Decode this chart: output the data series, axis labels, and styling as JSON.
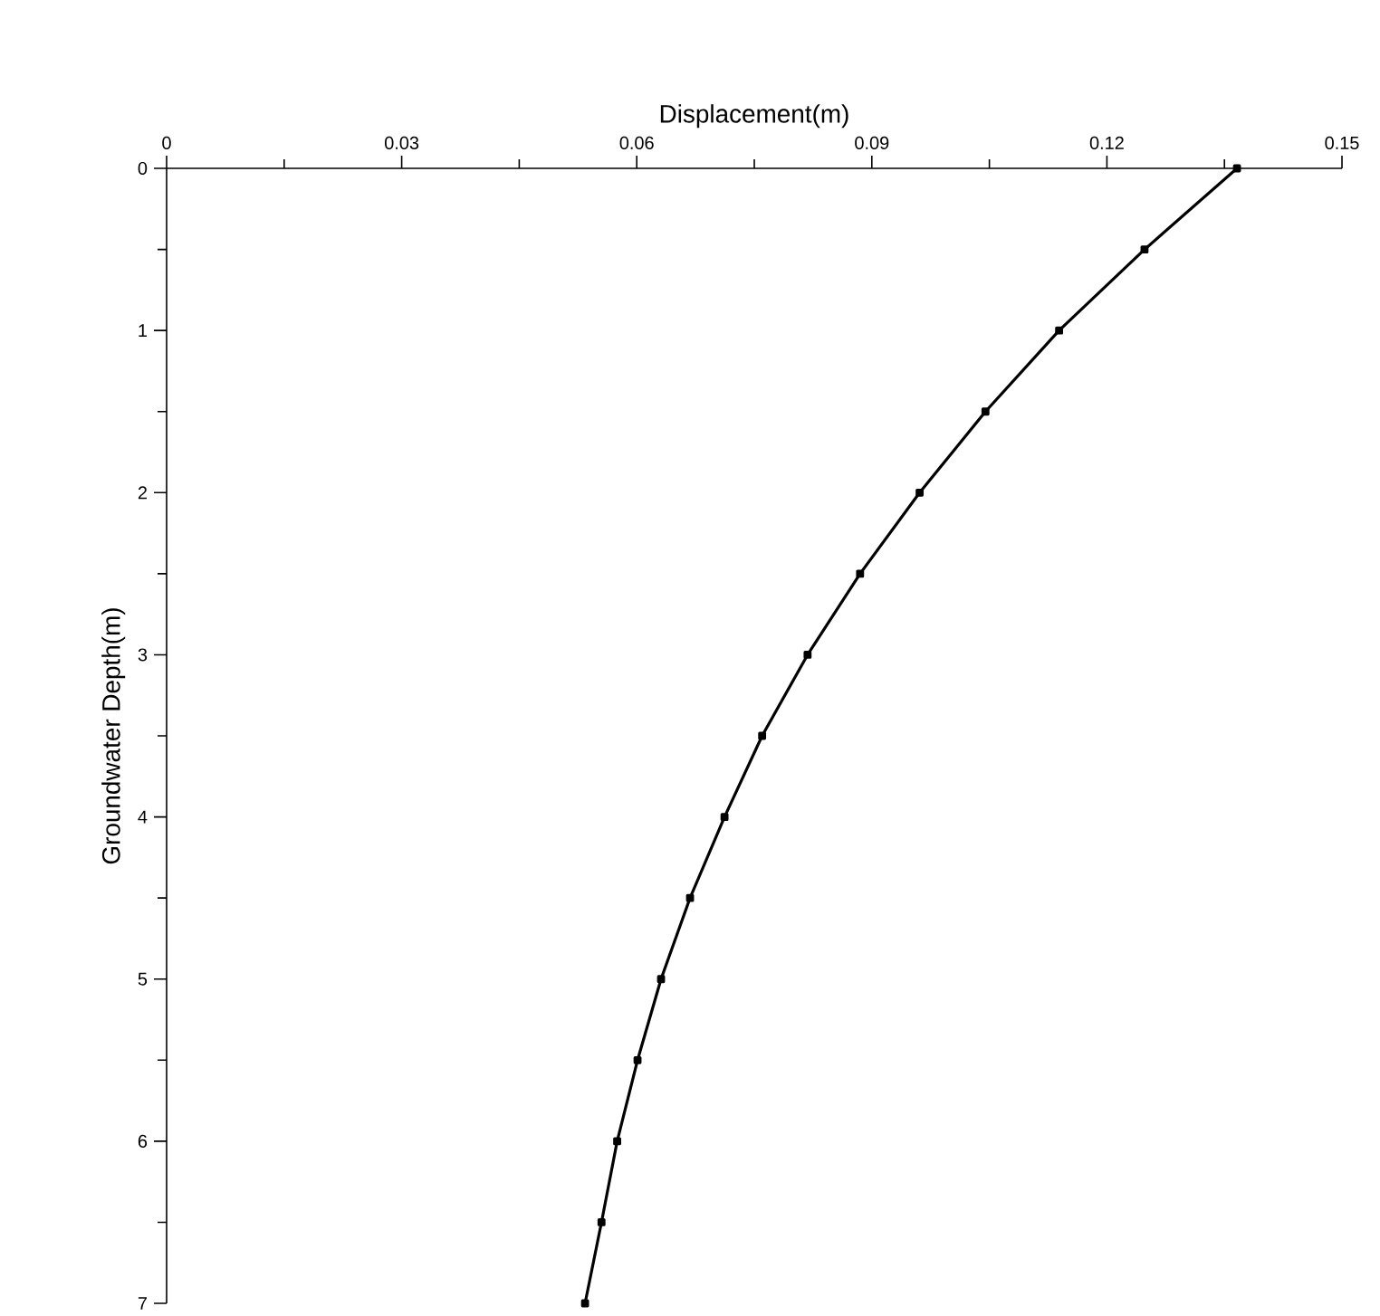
{
  "chart_data": {
    "type": "line",
    "xlabel": "Displacement(m)",
    "ylabel": "Groundwater Depth(m)",
    "x": [
      0.1366,
      0.1248,
      0.1139,
      0.1045,
      0.0961,
      0.0885,
      0.0818,
      0.076,
      0.0712,
      0.0668,
      0.0631,
      0.0601,
      0.0575,
      0.0555,
      0.0534
    ],
    "values": [
      0,
      0.5,
      1,
      1.5,
      2,
      2.5,
      3,
      3.5,
      4,
      4.5,
      5,
      5.5,
      6,
      6.5,
      7
    ],
    "color": "#000000",
    "marker": "square",
    "line_style": "solid",
    "xlim": [
      0,
      0.15
    ],
    "ylim": [
      7,
      0
    ],
    "xticks": [
      0,
      0.03,
      0.06,
      0.09,
      0.12,
      0.15
    ],
    "yticks": [
      0,
      1,
      2,
      3,
      4,
      5,
      6,
      7
    ]
  }
}
